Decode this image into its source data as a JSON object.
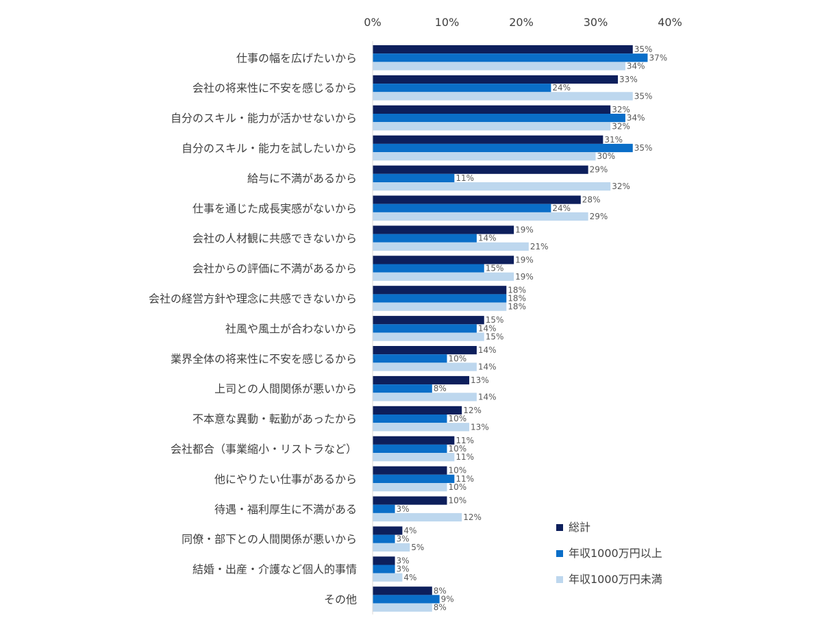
{
  "chart_data": {
    "type": "bar",
    "orientation": "horizontal",
    "title": "",
    "xlabel": "",
    "ylabel": "",
    "xlim": [
      0,
      40
    ],
    "ticks": [
      "0%",
      "10%",
      "20%",
      "30%",
      "40%"
    ],
    "tick_values": [
      0,
      10,
      20,
      30,
      40
    ],
    "grid": false,
    "legend_position": "bottom-right",
    "categories": [
      "仕事の幅を広げたいから",
      "会社の将来性に不安を感じるから",
      "自分のスキル・能力が活かせないから",
      "自分のスキル・能力を試したいから",
      "給与に不満があるから",
      "仕事を通じた成長実感がないから",
      "会社の人材観に共感できないから",
      "会社からの評価に不満があるから",
      "会社の経営方針や理念に共感できないから",
      "社風や風土が合わないから",
      "業界全体の将来性に不安を感じるから",
      "上司との人間関係が悪いから",
      "不本意な異動・転勤があったから",
      "会社都合（事業縮小・リストラなど）",
      "他にやりたい仕事があるから",
      "待遇・福利厚生に不満がある",
      "同僚・部下との人間関係が悪いから",
      "結婚・出産・介護など個人的事情",
      "その他"
    ],
    "series": [
      {
        "name": "総計",
        "color": "#0d1f5c",
        "values": [
          35,
          33,
          32,
          31,
          29,
          28,
          19,
          19,
          18,
          15,
          14,
          13,
          12,
          11,
          10,
          10,
          4,
          3,
          8
        ],
        "labels": [
          "35%",
          "33%",
          "32%",
          "31%",
          "29%",
          "28%",
          "19%",
          "19%",
          "18%",
          "15%",
          "14%",
          "13%",
          "12%",
          "11%",
          "10%",
          "10%",
          "4%",
          "3%",
          "8%"
        ]
      },
      {
        "name": "年収1000万円以上",
        "color": "#0a6ec8",
        "values": [
          37,
          24,
          34,
          35,
          11,
          24,
          14,
          15,
          18,
          14,
          10,
          8,
          10,
          10,
          11,
          3,
          3,
          3,
          9
        ],
        "labels": [
          "37%",
          "24%",
          "34%",
          "35%",
          "11%",
          "24%",
          "14%",
          "15%",
          "18%",
          "14%",
          "10%",
          "8%",
          "10%",
          "10%",
          "11%",
          "3%",
          "3%",
          "3%",
          "9%"
        ]
      },
      {
        "name": "年収1000万円未満",
        "color": "#bdd7ee",
        "values": [
          34,
          35,
          32,
          30,
          32,
          29,
          21,
          19,
          18,
          15,
          14,
          14,
          13,
          11,
          10,
          12,
          5,
          4,
          8
        ],
        "labels": [
          "34%",
          "35%",
          "32%",
          "30%",
          "32%",
          "29%",
          "21%",
          "19%",
          "18%",
          "15%",
          "14%",
          "14%",
          "13%",
          "11%",
          "10%",
          "12%",
          "5%",
          "4%",
          "8%"
        ]
      }
    ]
  }
}
